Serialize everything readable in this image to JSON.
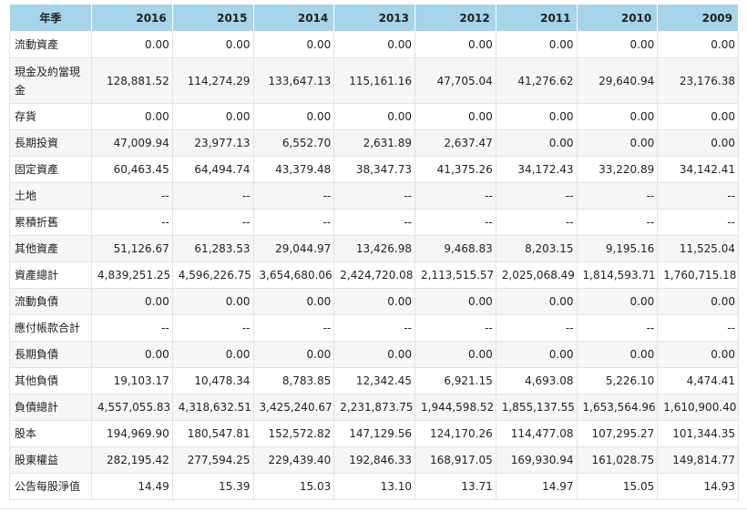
{
  "table": {
    "header_label": "年季",
    "years": [
      "2016",
      "2015",
      "2014",
      "2013",
      "2012",
      "2011",
      "2010",
      "2009"
    ],
    "rows": [
      {
        "label": "流動資產",
        "values": [
          "0.00",
          "0.00",
          "0.00",
          "0.00",
          "0.00",
          "0.00",
          "0.00",
          "0.00"
        ]
      },
      {
        "label": "現金及約當現金",
        "values": [
          "128,881.52",
          "114,274.29",
          "133,647.13",
          "115,161.16",
          "47,705.04",
          "41,276.62",
          "29,640.94",
          "23,176.38"
        ]
      },
      {
        "label": "存貨",
        "values": [
          "0.00",
          "0.00",
          "0.00",
          "0.00",
          "0.00",
          "0.00",
          "0.00",
          "0.00"
        ]
      },
      {
        "label": "長期投資",
        "values": [
          "47,009.94",
          "23,977.13",
          "6,552.70",
          "2,631.89",
          "2,637.47",
          "0.00",
          "0.00",
          "0.00"
        ]
      },
      {
        "label": "固定資產",
        "values": [
          "60,463.45",
          "64,494.74",
          "43,379.48",
          "38,347.73",
          "41,375.26",
          "34,172.43",
          "33,220.89",
          "34,142.41"
        ]
      },
      {
        "label": "土地",
        "values": [
          "--",
          "--",
          "--",
          "--",
          "--",
          "--",
          "--",
          "--"
        ]
      },
      {
        "label": "累積折舊",
        "values": [
          "--",
          "--",
          "--",
          "--",
          "--",
          "--",
          "--",
          "--"
        ]
      },
      {
        "label": "其他資產",
        "values": [
          "51,126.67",
          "61,283.53",
          "29,044.97",
          "13,426.98",
          "9,468.83",
          "8,203.15",
          "9,195.16",
          "11,525.04"
        ]
      },
      {
        "label": "資產總計",
        "values": [
          "4,839,251.25",
          "4,596,226.75",
          "3,654,680.06",
          "2,424,720.08",
          "2,113,515.57",
          "2,025,068.49",
          "1,814,593.71",
          "1,760,715.18"
        ]
      },
      {
        "label": "流動負債",
        "values": [
          "0.00",
          "0.00",
          "0.00",
          "0.00",
          "0.00",
          "0.00",
          "0.00",
          "0.00"
        ]
      },
      {
        "label": "應付帳款合計",
        "values": [
          "--",
          "--",
          "--",
          "--",
          "--",
          "--",
          "--",
          "--"
        ]
      },
      {
        "label": "長期負債",
        "values": [
          "0.00",
          "0.00",
          "0.00",
          "0.00",
          "0.00",
          "0.00",
          "0.00",
          "0.00"
        ]
      },
      {
        "label": "其他負債",
        "values": [
          "19,103.17",
          "10,478.34",
          "8,783.85",
          "12,342.45",
          "6,921.15",
          "4,693.08",
          "5,226.10",
          "4,474.41"
        ]
      },
      {
        "label": "負債總計",
        "values": [
          "4,557,055.83",
          "4,318,632.51",
          "3,425,240.67",
          "2,231,873.75",
          "1,944,598.52",
          "1,855,137.55",
          "1,653,564.96",
          "1,610,900.40"
        ]
      },
      {
        "label": "股本",
        "values": [
          "194,969.90",
          "180,547.81",
          "152,572.82",
          "147,129.56",
          "124,170.26",
          "114,477.08",
          "107,295.27",
          "101,344.35"
        ]
      },
      {
        "label": "股東權益",
        "values": [
          "282,195.42",
          "277,594.25",
          "229,439.40",
          "192,846.33",
          "168,917.05",
          "169,930.94",
          "161,028.75",
          "149,814.77"
        ]
      },
      {
        "label": "公告每股淨值",
        "values": [
          "14.49",
          "15.39",
          "15.03",
          "13.10",
          "13.71",
          "14.97",
          "15.05",
          "14.93"
        ]
      }
    ]
  }
}
